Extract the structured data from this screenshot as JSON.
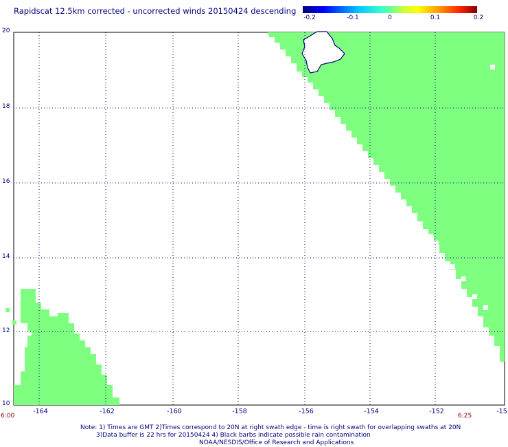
{
  "title": "Rapidscat 12.5km corrected - uncorrected winds 20150424 descending",
  "colorbar": {
    "labels": [
      "-0.2",
      "-0.1",
      "0",
      "0.1",
      "0.2"
    ]
  },
  "axes": {
    "lat_labels": [
      "20",
      "18",
      "16",
      "14",
      "12",
      "10"
    ],
    "lon_labels": [
      "-164",
      "-162",
      "-160",
      "-158",
      "-156",
      "-154",
      "-152",
      "-15"
    ]
  },
  "times": {
    "left": "6:00",
    "right": "6:25"
  },
  "notes": {
    "line1": "Note: 1) Times are GMT 2)Times correspond to 20N at right swath edge - time is right swath for overlapping swaths at 20N",
    "line2": "3)Data buffer is 22 hrs for 20150424 4) Black barbs indicate possible rain contamination",
    "line3": "NOAA/NESDIS/Office of Research and Applications"
  },
  "colors": {
    "swath_fill": "#7fff7f",
    "coast": "#000080",
    "grid": "#000080",
    "frame": "#000000"
  }
}
